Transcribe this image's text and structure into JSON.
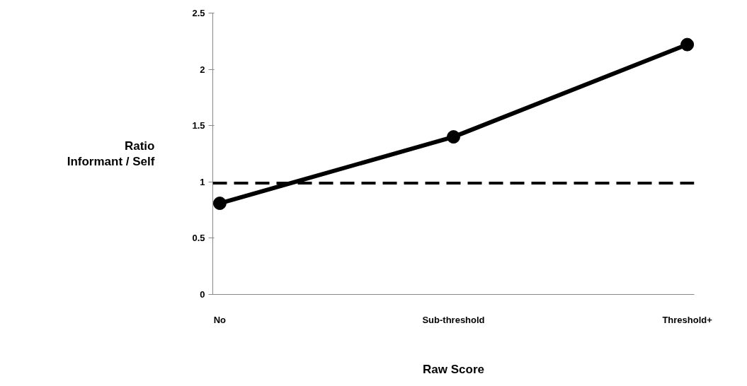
{
  "chart_data": {
    "type": "line",
    "xlabel": "Raw Score",
    "ylabel": "Ratio\nInformant / Self",
    "categories": [
      "No",
      "Sub-threshold",
      "Threshold+"
    ],
    "series": [
      {
        "color": "#000000",
        "values": [
          0.81,
          1.4,
          2.22
        ]
      }
    ],
    "ylim": [
      0,
      2.5
    ],
    "yticks": [
      0,
      0.5,
      1,
      1.5,
      2,
      2.5
    ],
    "ref_lines": [
      {
        "axis": "y",
        "value": 0.99,
        "color": "#000000",
        "line_style": "dashed"
      }
    ],
    "marker": "circle",
    "line_style": "solid"
  }
}
